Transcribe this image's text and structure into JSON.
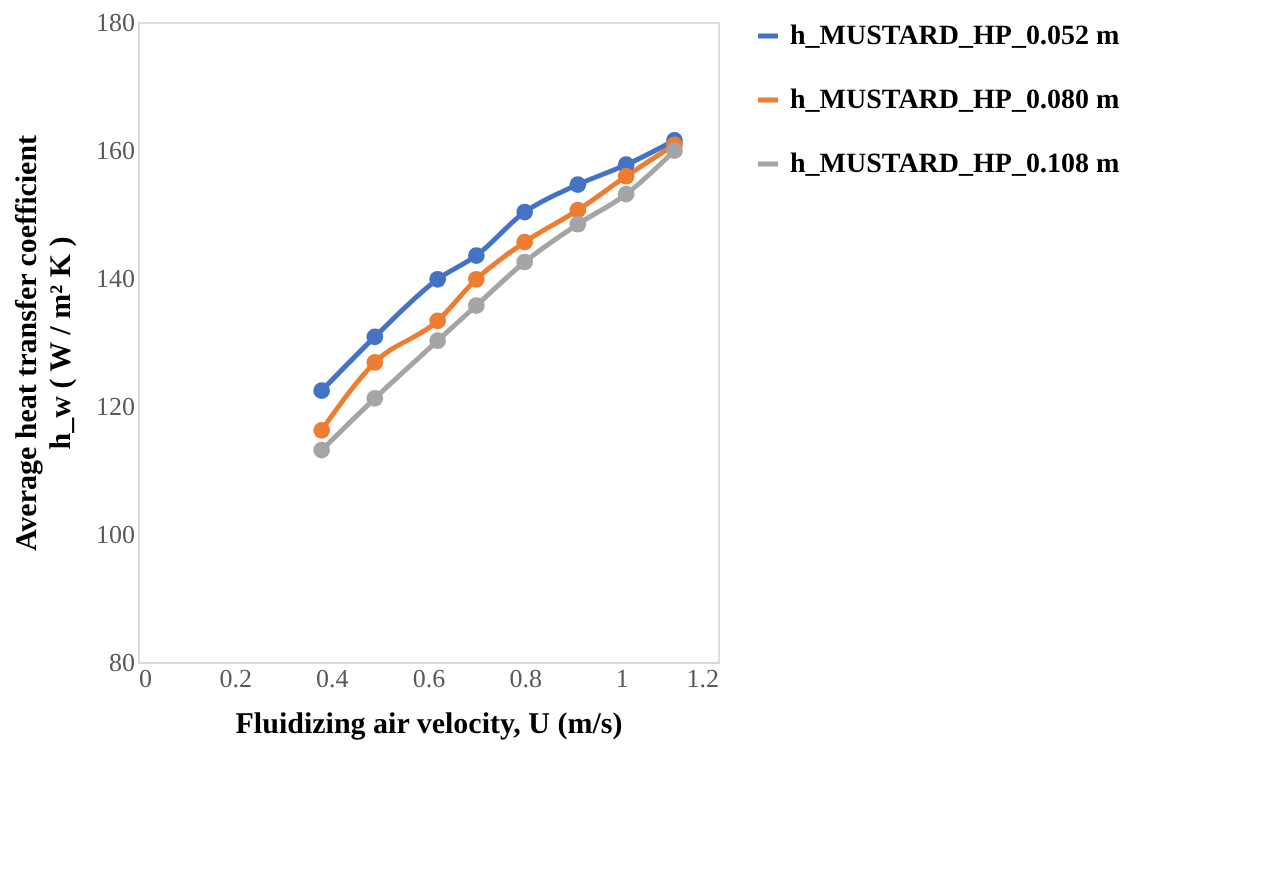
{
  "chart_data": {
    "type": "line",
    "xlabel": "Fluidizing air velocity, U (m/s)",
    "ylabel": [
      "Average heat transfer coefficient",
      "h_w ( W / m² K )"
    ],
    "x": [
      0.38,
      0.49,
      0.62,
      0.7,
      0.8,
      0.91,
      1.01,
      1.11
    ],
    "series": [
      {
        "name": "h_MUSTARD_HP_0.052 m",
        "color": "#4472c4",
        "values": [
          122.4,
          130.8,
          139.8,
          143.5,
          150.3,
          154.6,
          157.7,
          161.5
        ]
      },
      {
        "name": "h_MUSTARD_HP_0.080 m",
        "color": "#ed7d31",
        "values": [
          116.2,
          126.8,
          133.3,
          139.8,
          145.6,
          150.6,
          155.9,
          160.8
        ]
      },
      {
        "name": "h_MUSTARD_HP_0.108 m",
        "color": "#a5a5a5",
        "values": [
          113.1,
          121.2,
          130.2,
          135.7,
          142.5,
          148.4,
          153.1,
          159.9
        ]
      }
    ],
    "xlim": [
      0,
      1.2
    ],
    "xticks": [
      {
        "value": 0,
        "label": "0"
      },
      0.2,
      0.4,
      0.6,
      0.8,
      {
        "value": 1,
        "label": "1"
      },
      1.2
    ],
    "ylim": [
      80,
      180
    ],
    "yticks": [
      80,
      100,
      120,
      140,
      160,
      180
    ],
    "grid": false,
    "legend": "right",
    "marker": "circle",
    "line_style": "solid"
  }
}
